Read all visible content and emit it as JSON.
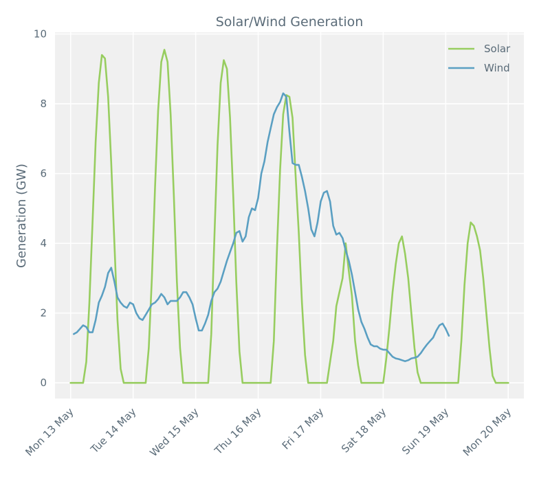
{
  "chart_data": {
    "type": "line",
    "title": "Solar/Wind Generation",
    "xlabel": "",
    "ylabel": "Generation (GW)",
    "ylim": [
      -0.45,
      10.05
    ],
    "yticks": [
      0,
      2,
      4,
      6,
      8,
      10
    ],
    "xlim": [
      -0.25,
      7.25
    ],
    "xtick_values": [
      0,
      1,
      2,
      3,
      4,
      5,
      6,
      7
    ],
    "xtick_labels": [
      "Mon 13 May",
      "Tue 14 May",
      "Wed 15 May",
      "Thu 16 May",
      "Fri 17 May",
      "Sat 18 May",
      "Sun 19 May",
      "Mon 20 May"
    ],
    "grid": true,
    "legend_position": "top-right",
    "series": [
      {
        "name": "Solar",
        "color": "#97cd5f",
        "points": [
          [
            0.0,
            0.0
          ],
          [
            0.2,
            0.0
          ],
          [
            0.25,
            0.6
          ],
          [
            0.3,
            2.3
          ],
          [
            0.35,
            4.6
          ],
          [
            0.4,
            6.9
          ],
          [
            0.45,
            8.6
          ],
          [
            0.5,
            9.4
          ],
          [
            0.55,
            9.3
          ],
          [
            0.6,
            8.2
          ],
          [
            0.65,
            6.3
          ],
          [
            0.7,
            4.0
          ],
          [
            0.75,
            1.8
          ],
          [
            0.8,
            0.4
          ],
          [
            0.85,
            0.0
          ],
          [
            1.2,
            0.0
          ],
          [
            1.25,
            1.0
          ],
          [
            1.3,
            3.0
          ],
          [
            1.35,
            5.6
          ],
          [
            1.4,
            7.8
          ],
          [
            1.45,
            9.2
          ],
          [
            1.5,
            9.55
          ],
          [
            1.55,
            9.2
          ],
          [
            1.6,
            7.7
          ],
          [
            1.65,
            5.4
          ],
          [
            1.7,
            2.9
          ],
          [
            1.75,
            1.0
          ],
          [
            1.8,
            0.0
          ],
          [
            2.2,
            0.0
          ],
          [
            2.25,
            1.4
          ],
          [
            2.3,
            4.2
          ],
          [
            2.35,
            6.8
          ],
          [
            2.4,
            8.6
          ],
          [
            2.45,
            9.25
          ],
          [
            2.5,
            9.0
          ],
          [
            2.55,
            7.6
          ],
          [
            2.6,
            5.4
          ],
          [
            2.65,
            2.9
          ],
          [
            2.7,
            0.9
          ],
          [
            2.75,
            0.0
          ],
          [
            3.2,
            0.0
          ],
          [
            3.25,
            1.2
          ],
          [
            3.3,
            3.8
          ],
          [
            3.35,
            6.1
          ],
          [
            3.4,
            7.7
          ],
          [
            3.45,
            8.25
          ],
          [
            3.5,
            8.2
          ],
          [
            3.55,
            7.6
          ],
          [
            3.6,
            5.9
          ],
          [
            3.65,
            4.3
          ],
          [
            3.7,
            2.3
          ],
          [
            3.75,
            0.8
          ],
          [
            3.8,
            0.0
          ],
          [
            4.1,
            0.0
          ],
          [
            4.15,
            0.6
          ],
          [
            4.2,
            1.2
          ],
          [
            4.25,
            2.2
          ],
          [
            4.3,
            2.6
          ],
          [
            4.35,
            3.0
          ],
          [
            4.4,
            4.0
          ],
          [
            4.45,
            3.2
          ],
          [
            4.5,
            2.5
          ],
          [
            4.55,
            1.2
          ],
          [
            4.6,
            0.5
          ],
          [
            4.65,
            0.0
          ],
          [
            5.0,
            0.0
          ],
          [
            5.05,
            0.7
          ],
          [
            5.1,
            1.6
          ],
          [
            5.15,
            2.6
          ],
          [
            5.2,
            3.4
          ],
          [
            5.25,
            4.0
          ],
          [
            5.3,
            4.2
          ],
          [
            5.35,
            3.7
          ],
          [
            5.4,
            3.0
          ],
          [
            5.45,
            2.0
          ],
          [
            5.5,
            1.0
          ],
          [
            5.55,
            0.3
          ],
          [
            5.6,
            0.0
          ],
          [
            6.2,
            0.0
          ],
          [
            6.25,
            1.2
          ],
          [
            6.3,
            2.8
          ],
          [
            6.35,
            4.0
          ],
          [
            6.4,
            4.6
          ],
          [
            6.45,
            4.5
          ],
          [
            6.5,
            4.2
          ],
          [
            6.55,
            3.8
          ],
          [
            6.6,
            3.0
          ],
          [
            6.65,
            2.0
          ],
          [
            6.7,
            1.0
          ],
          [
            6.75,
            0.2
          ],
          [
            6.8,
            0.0
          ],
          [
            7.0,
            0.0
          ]
        ]
      },
      {
        "name": "Wind",
        "color": "#5a9fc2",
        "points": [
          [
            0.05,
            1.4
          ],
          [
            0.1,
            1.45
          ],
          [
            0.15,
            1.55
          ],
          [
            0.2,
            1.65
          ],
          [
            0.25,
            1.6
          ],
          [
            0.3,
            1.45
          ],
          [
            0.35,
            1.45
          ],
          [
            0.4,
            1.8
          ],
          [
            0.45,
            2.3
          ],
          [
            0.5,
            2.5
          ],
          [
            0.55,
            2.75
          ],
          [
            0.6,
            3.15
          ],
          [
            0.65,
            3.3
          ],
          [
            0.7,
            2.9
          ],
          [
            0.75,
            2.45
          ],
          [
            0.8,
            2.3
          ],
          [
            0.85,
            2.2
          ],
          [
            0.9,
            2.15
          ],
          [
            0.95,
            2.3
          ],
          [
            1.0,
            2.25
          ],
          [
            1.05,
            2.0
          ],
          [
            1.1,
            1.85
          ],
          [
            1.15,
            1.8
          ],
          [
            1.2,
            1.95
          ],
          [
            1.25,
            2.1
          ],
          [
            1.3,
            2.25
          ],
          [
            1.35,
            2.3
          ],
          [
            1.4,
            2.4
          ],
          [
            1.45,
            2.55
          ],
          [
            1.5,
            2.45
          ],
          [
            1.55,
            2.25
          ],
          [
            1.6,
            2.35
          ],
          [
            1.65,
            2.35
          ],
          [
            1.7,
            2.35
          ],
          [
            1.75,
            2.45
          ],
          [
            1.8,
            2.6
          ],
          [
            1.85,
            2.6
          ],
          [
            1.9,
            2.45
          ],
          [
            1.95,
            2.25
          ],
          [
            2.0,
            1.85
          ],
          [
            2.05,
            1.5
          ],
          [
            2.1,
            1.5
          ],
          [
            2.15,
            1.7
          ],
          [
            2.2,
            1.95
          ],
          [
            2.25,
            2.35
          ],
          [
            2.3,
            2.6
          ],
          [
            2.35,
            2.7
          ],
          [
            2.4,
            2.9
          ],
          [
            2.45,
            3.2
          ],
          [
            2.5,
            3.5
          ],
          [
            2.55,
            3.75
          ],
          [
            2.6,
            4.0
          ],
          [
            2.65,
            4.3
          ],
          [
            2.7,
            4.35
          ],
          [
            2.75,
            4.05
          ],
          [
            2.8,
            4.2
          ],
          [
            2.85,
            4.75
          ],
          [
            2.9,
            5.0
          ],
          [
            2.95,
            4.95
          ],
          [
            3.0,
            5.3
          ],
          [
            3.05,
            6.0
          ],
          [
            3.1,
            6.35
          ],
          [
            3.15,
            6.9
          ],
          [
            3.2,
            7.3
          ],
          [
            3.25,
            7.7
          ],
          [
            3.3,
            7.9
          ],
          [
            3.35,
            8.05
          ],
          [
            3.4,
            8.3
          ],
          [
            3.45,
            8.2
          ],
          [
            3.5,
            7.2
          ],
          [
            3.55,
            6.3
          ],
          [
            3.6,
            6.25
          ],
          [
            3.65,
            6.25
          ],
          [
            3.7,
            5.9
          ],
          [
            3.75,
            5.5
          ],
          [
            3.8,
            5.0
          ],
          [
            3.85,
            4.4
          ],
          [
            3.9,
            4.2
          ],
          [
            3.95,
            4.6
          ],
          [
            4.0,
            5.2
          ],
          [
            4.05,
            5.45
          ],
          [
            4.1,
            5.5
          ],
          [
            4.15,
            5.2
          ],
          [
            4.2,
            4.5
          ],
          [
            4.25,
            4.25
          ],
          [
            4.3,
            4.3
          ],
          [
            4.35,
            4.15
          ],
          [
            4.4,
            3.8
          ],
          [
            4.45,
            3.5
          ],
          [
            4.5,
            3.1
          ],
          [
            4.55,
            2.6
          ],
          [
            4.6,
            2.1
          ],
          [
            4.65,
            1.75
          ],
          [
            4.7,
            1.55
          ],
          [
            4.75,
            1.3
          ],
          [
            4.8,
            1.1
          ],
          [
            4.85,
            1.05
          ],
          [
            4.9,
            1.05
          ],
          [
            4.95,
            0.98
          ],
          [
            5.0,
            0.95
          ],
          [
            5.05,
            0.95
          ],
          [
            5.1,
            0.85
          ],
          [
            5.15,
            0.75
          ],
          [
            5.2,
            0.7
          ],
          [
            5.25,
            0.68
          ],
          [
            5.3,
            0.65
          ],
          [
            5.35,
            0.62
          ],
          [
            5.4,
            0.65
          ],
          [
            5.45,
            0.7
          ],
          [
            5.5,
            0.72
          ],
          [
            5.55,
            0.75
          ],
          [
            5.6,
            0.85
          ],
          [
            5.65,
            0.98
          ],
          [
            5.7,
            1.1
          ],
          [
            5.75,
            1.2
          ],
          [
            5.8,
            1.3
          ],
          [
            5.85,
            1.5
          ],
          [
            5.9,
            1.65
          ],
          [
            5.95,
            1.7
          ],
          [
            6.0,
            1.55
          ],
          [
            6.05,
            1.35
          ]
        ]
      }
    ]
  }
}
